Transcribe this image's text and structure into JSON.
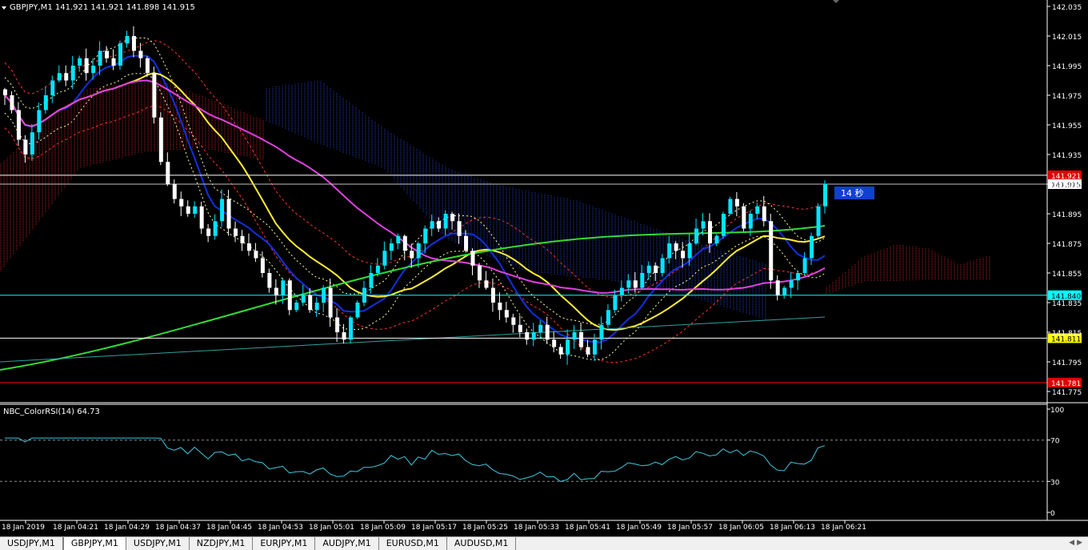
{
  "chart": {
    "symbol_info": "GBPJPY,M1  141.921 141.921 141.898 141.915",
    "countdown": "14 秒",
    "indicator_title": "NBC_ColorRSI(14) 64.73",
    "price_labels": [
      "142.035",
      "142.015",
      "141.995",
      "141.975",
      "141.955",
      "141.935",
      "141.915",
      "141.895",
      "141.875",
      "141.855",
      "141.835",
      "141.815",
      "141.795",
      "141.775"
    ],
    "hline_labels": [
      {
        "text": "141.921",
        "price": 141.921,
        "bg": "#e00000",
        "fg": "#ffffff",
        "line": "#ffffff"
      },
      {
        "text": "141.915",
        "price": 141.915,
        "bg": "#ffffff",
        "fg": "#000000",
        "line": "#c0c0c0"
      },
      {
        "text": "141.840",
        "price": 141.84,
        "bg": "#00ffff",
        "fg": "#000000",
        "line": "#00ffff"
      },
      {
        "text": "141.811",
        "price": 141.811,
        "bg": "#ffff00",
        "fg": "#000000",
        "line": "#ffffff"
      },
      {
        "text": "141.781",
        "price": 141.781,
        "bg": "#e00000",
        "fg": "#ffffff",
        "line": "#ff0000"
      }
    ],
    "rsi_labels": [
      "100",
      "70",
      "30",
      "0"
    ],
    "time_labels": [
      "18 Jan 2019",
      "18 Jan 04:21",
      "18 Jan 04:29",
      "18 Jan 04:37",
      "18 Jan 04:45",
      "18 Jan 04:53",
      "18 Jan 05:01",
      "18 Jan 05:09",
      "18 Jan 05:17",
      "18 Jan 05:25",
      "18 Jan 05:33",
      "18 Jan 05:41",
      "18 Jan 05:49",
      "18 Jan 05:57",
      "18 Jan 06:05",
      "18 Jan 06:13",
      "18 Jan 06:21"
    ],
    "colors": {
      "bull": "#00e5ff",
      "bear": "#ffffff",
      "ma_fast": "#1030e0",
      "ma_mid": "#ffee33",
      "ma_slow": "#e040e0",
      "ma_long": "#33dd33",
      "bands": "#ff3030",
      "rsi": "#40c8e0",
      "grid": "#808080"
    }
  },
  "tabs": [
    {
      "label": "USDJPY,M1",
      "active": false
    },
    {
      "label": "GBPJPY,M1",
      "active": true
    },
    {
      "label": "USDJPY,M1",
      "active": false
    },
    {
      "label": "NZDJPY,M1",
      "active": false
    },
    {
      "label": "EURJPY,M1",
      "active": false
    },
    {
      "label": "AUDJPY,M1",
      "active": false
    },
    {
      "label": "EURUSD,M1",
      "active": false
    },
    {
      "label": "AUDUSD,M1",
      "active": false
    }
  ]
}
